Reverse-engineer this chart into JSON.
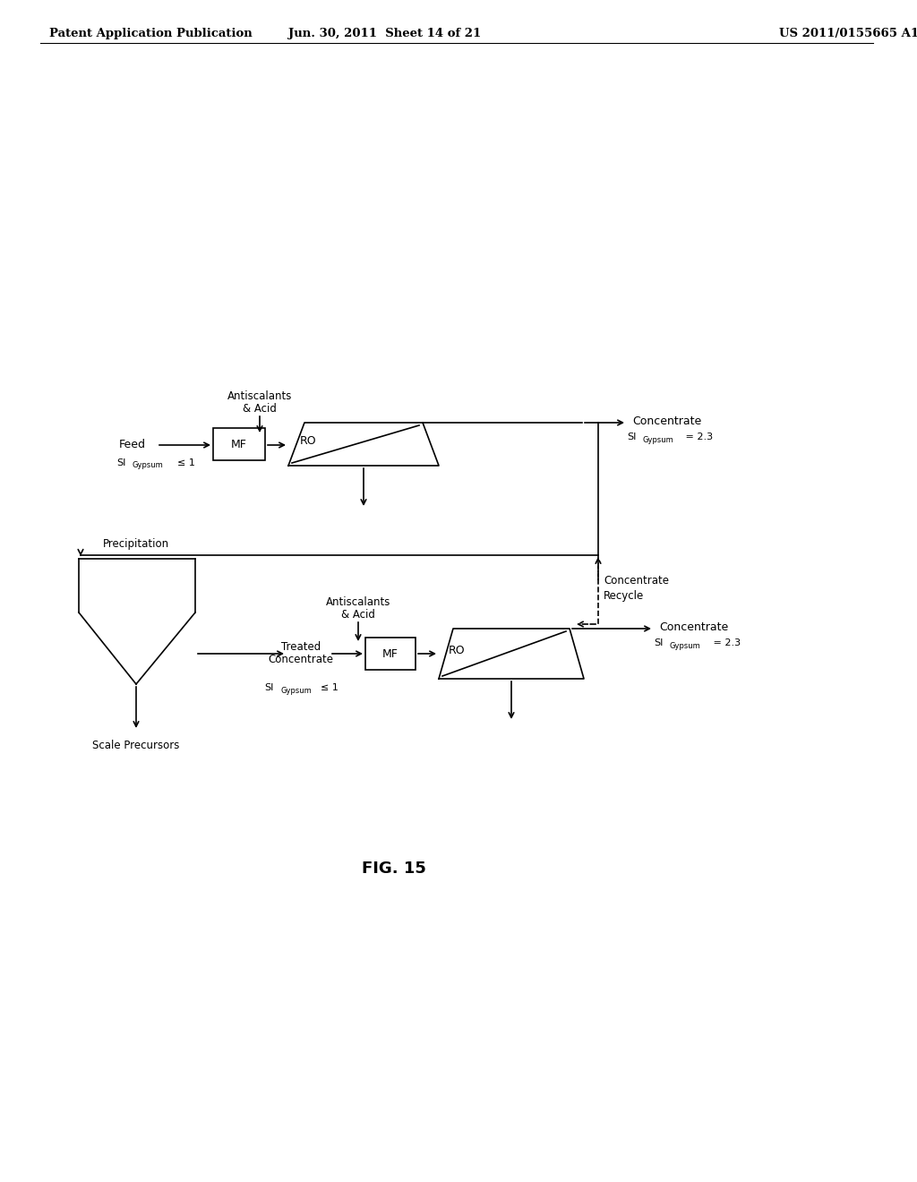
{
  "bg_color": "#ffffff",
  "text_color": "#000000",
  "header_left": "Patent Application Publication",
  "header_mid": "Jun. 30, 2011  Sheet 14 of 21",
  "header_right": "US 2011/0155665 A1",
  "fig_label": "FIG. 15",
  "line_color": "#000000",
  "line_width": 1.2
}
